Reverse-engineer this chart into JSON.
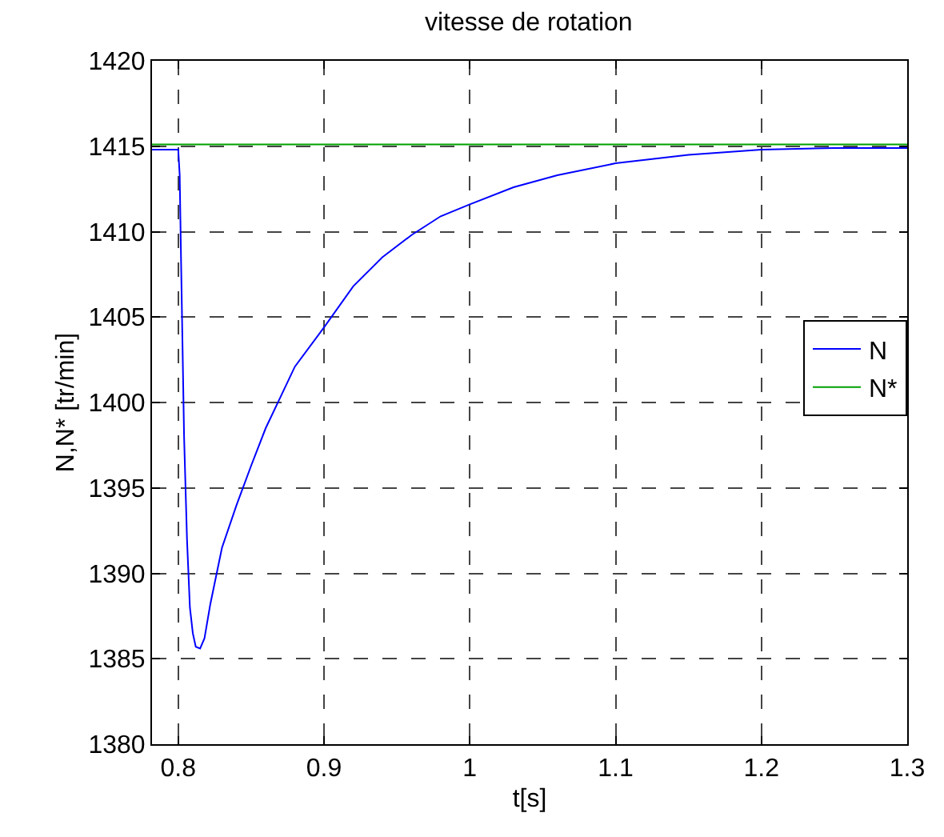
{
  "chart_data": {
    "type": "line",
    "title": "vitesse de rotation",
    "xlabel": "t[s]",
    "ylabel": "N,N* [tr/min]",
    "xlim": [
      0.782,
      1.3
    ],
    "ylim": [
      1380,
      1420
    ],
    "xticks": [
      0.8,
      0.9,
      1,
      1.1,
      1.2,
      1.3
    ],
    "yticks": [
      1380,
      1385,
      1390,
      1395,
      1400,
      1405,
      1410,
      1415,
      1420
    ],
    "grid": true,
    "legend": "right",
    "line_style": "solid",
    "marker": "none",
    "series": [
      {
        "name": "N",
        "color": "#0000ff",
        "x": [
          0.782,
          0.8,
          0.801,
          0.802,
          0.804,
          0.806,
          0.808,
          0.81,
          0.812,
          0.815,
          0.818,
          0.822,
          0.83,
          0.84,
          0.85,
          0.86,
          0.87,
          0.88,
          0.9,
          0.92,
          0.94,
          0.96,
          0.98,
          1.0,
          1.03,
          1.06,
          1.1,
          1.15,
          1.2,
          1.25,
          1.3
        ],
        "values": [
          1414.8,
          1414.8,
          1413.3,
          1408,
          1398,
          1392,
          1388,
          1386.5,
          1385.7,
          1385.6,
          1386.2,
          1388.2,
          1391.5,
          1394,
          1396.3,
          1398.5,
          1400.3,
          1402.1,
          1404.4,
          1406.8,
          1408.5,
          1409.8,
          1410.9,
          1411.6,
          1412.6,
          1413.3,
          1414,
          1414.5,
          1414.8,
          1414.9,
          1414.9
        ]
      },
      {
        "name": "N*",
        "color": "#00a000",
        "x": [
          0.782,
          1.3
        ],
        "values": [
          1415.1,
          1415.1
        ]
      }
    ]
  }
}
